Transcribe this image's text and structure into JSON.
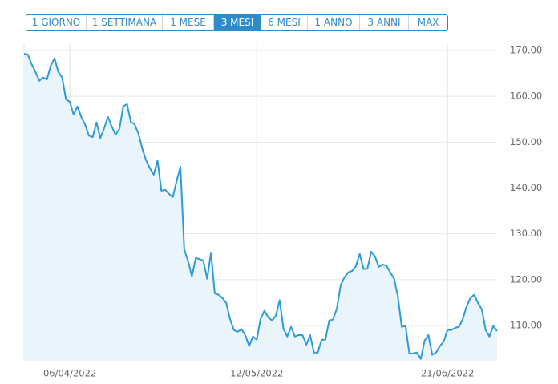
{
  "range_buttons": [
    "1 GIORNO",
    "1 SETTIMANA",
    "1 MESE",
    "3 MESI",
    "6 MESI",
    "1 ANNO",
    "3 ANNI",
    "MAX"
  ],
  "selected_range_button": 3,
  "chart_data": {
    "type": "area",
    "color": "#2e9bd6",
    "fill": "#e9f4fb",
    "grid": true,
    "categories": [
      null,
      null,
      null,
      null,
      null,
      null,
      null,
      null,
      null,
      null,
      null,
      null,
      "06/04/2022",
      null,
      null,
      null,
      null,
      null,
      null,
      null,
      null,
      null,
      null,
      null,
      null,
      null,
      null,
      null,
      null,
      null,
      null,
      null,
      null,
      null,
      null,
      null,
      null,
      null,
      null,
      null,
      null,
      null,
      null,
      null,
      null,
      null,
      null,
      null,
      null,
      null,
      null,
      null,
      null,
      null,
      null,
      null,
      null,
      null,
      null,
      null,
      null,
      "12/05/2022",
      null,
      null,
      null,
      null,
      null,
      null,
      null,
      null,
      null,
      null,
      null,
      null,
      null,
      null,
      null,
      null,
      null,
      null,
      null,
      null,
      null,
      null,
      null,
      null,
      null,
      null,
      null,
      null,
      null,
      null,
      null,
      null,
      null,
      null,
      null,
      null,
      null,
      null,
      null,
      null,
      null,
      null,
      null,
      null,
      null,
      null,
      null,
      null,
      null,
      "21/06/2022",
      null,
      null,
      null,
      null,
      null,
      null,
      null,
      null,
      null,
      null,
      null,
      null,
      null
    ],
    "values": [
      169.3,
      169.1,
      167.0,
      165.3,
      163.4,
      164.1,
      163.7,
      166.7,
      168.3,
      165.3,
      164.1,
      159.3,
      158.8,
      156.0,
      157.8,
      155.5,
      153.9,
      151.4,
      151.1,
      154.3,
      150.9,
      153.0,
      155.5,
      153.4,
      151.6,
      152.9,
      157.8,
      158.3,
      154.4,
      153.9,
      151.8,
      148.6,
      146.0,
      144.3,
      142.9,
      146.0,
      139.4,
      139.6,
      138.7,
      138.0,
      141.5,
      144.6,
      126.6,
      124.1,
      120.7,
      124.7,
      124.5,
      124.1,
      120.2,
      125.9,
      117.0,
      116.7,
      116.0,
      114.9,
      111.4,
      109.0,
      108.6,
      109.2,
      107.9,
      105.5,
      107.6,
      106.9,
      111.4,
      113.2,
      111.8,
      111.1,
      112.1,
      115.5,
      109.3,
      107.6,
      109.7,
      107.6,
      107.9,
      107.9,
      105.8,
      107.9,
      104.1,
      104.1,
      106.9,
      106.9,
      111.1,
      111.3,
      113.7,
      118.8,
      120.5,
      121.6,
      121.9,
      123.0,
      125.6,
      122.3,
      122.4,
      126.1,
      125.1,
      122.8,
      123.3,
      123.0,
      121.6,
      120.2,
      116.3,
      109.7,
      109.9,
      103.9,
      103.9,
      104.1,
      102.7,
      106.7,
      107.9,
      103.6,
      104.1,
      105.5,
      106.5,
      109.0,
      109.0,
      109.5,
      109.7,
      111.4,
      114.1,
      116.0,
      116.7,
      114.9,
      113.5,
      109.0,
      107.6,
      109.9,
      108.8
    ],
    "ylim": [
      102.3,
      170
    ],
    "yticks": [
      {
        "value": 110,
        "label": "110.00"
      },
      {
        "value": 120,
        "label": "120.00"
      },
      {
        "value": 130,
        "label": "130.00"
      },
      {
        "value": 140,
        "label": "140.00"
      },
      {
        "value": 150,
        "label": "150.00"
      },
      {
        "value": 160,
        "label": "160.00"
      },
      {
        "value": 170,
        "label": "170.00"
      }
    ]
  }
}
